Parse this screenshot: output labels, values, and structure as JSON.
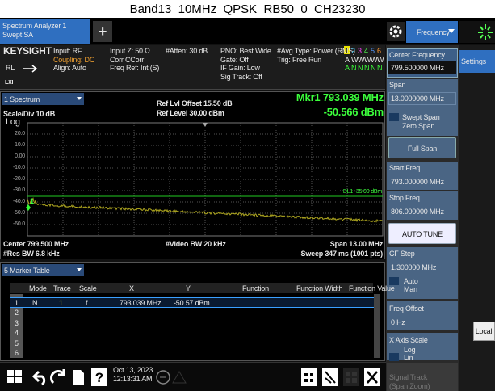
{
  "title": "Band13_10MHz_QPSK_RB50_0_CH23230",
  "tab_bar": {
    "instrument": "Spectrum Analyzer 1",
    "mode": "Swept SA",
    "add": "+",
    "menu": "Frequency"
  },
  "status": {
    "brand": "KEYSIGHT",
    "rl": "RL",
    "lxi": "LXI",
    "input": [
      "Input: RF",
      "Coupling: DC",
      "Align: Auto"
    ],
    "impedance": [
      "Input Z: 50 Ω",
      "Corr CCorr",
      "Freq Ref: Int (S)"
    ],
    "atten": "#Atten: 30 dB",
    "gate": [
      "PNO: Best Wide",
      "Gate: Off",
      "IF Gain: Low",
      "Sig Track: Off"
    ],
    "avg": [
      "#Avg Type: Power (RMS)",
      "Trig: Free Run"
    ],
    "trace_numbers": [
      "1",
      "2",
      "3",
      "4",
      "5",
      "6"
    ],
    "trace_types": [
      "A",
      "W",
      "W",
      "W",
      "W",
      "W"
    ],
    "trace_detectors": [
      "A",
      "N",
      "N",
      "N",
      "N",
      "N"
    ]
  },
  "spectrum": {
    "window": "1 Spectrum",
    "ref_offset": "Ref Lvl Offset 15.50 dB",
    "ref_level": "Ref Level 30.00 dBm",
    "marker_freq": "Mkr1  793.039 MHz",
    "marker_amp": "-50.566 dBm",
    "scale": "Scale/Div 10 dB",
    "log": "Log",
    "y_labels": [
      "20.0",
      "10.0",
      "0.00",
      "-10.0",
      "-20.0",
      "-30.0",
      "-40.0",
      "-50.0",
      "-60.0"
    ],
    "display_line": "DL1 -35.00 dBm",
    "marker_label": "1",
    "center": "Center 799.500 MHz",
    "vbw": "#Video BW 20 kHz",
    "span": "Span 13.00 MHz",
    "rbw": "#Res BW 6.8 kHz",
    "sweep": "Sweep 347 ms (1001 pts)"
  },
  "marker_table": {
    "window": "5 Marker Table",
    "headers": [
      "Mode",
      "Trace",
      "Scale",
      "X",
      "Y",
      "Function",
      "Function Width",
      "Function Value"
    ],
    "rows": [
      [
        "1",
        "N",
        "1",
        "f",
        "793.039 MHz",
        "-50.57 dBm"
      ],
      [
        "2"
      ],
      [
        "3"
      ],
      [
        "4"
      ],
      [
        "5"
      ],
      [
        "6"
      ]
    ]
  },
  "taskbar": {
    "date": "Oct 13, 2023",
    "time": "12:13:31 AM"
  },
  "panel": {
    "center_frequency": {
      "label": "Center Frequency",
      "value": "799.500000 MHz"
    },
    "span": {
      "label": "Span",
      "value": "13.0000000 MHz"
    },
    "span_mode": [
      "Swept Span",
      "Zero Span"
    ],
    "full_span": "Full Span",
    "start_freq": {
      "label": "Start Freq",
      "value": "793.000000 MHz"
    },
    "stop_freq": {
      "label": "Stop Freq",
      "value": "806.000000 MHz"
    },
    "auto_tune": "AUTO TUNE",
    "cf_step": {
      "label": "CF Step",
      "value": "1.300000 MHz",
      "options": [
        "Auto",
        "Man"
      ]
    },
    "freq_offset": {
      "label": "Freq Offset",
      "value": "0 Hz"
    },
    "x_axis_scale": {
      "label": "X Axis Scale",
      "options": [
        "Log",
        "Lin"
      ]
    },
    "signal_track": [
      "Signal Track",
      "(Span Zoom)"
    ]
  },
  "side": {
    "settings": "Settings",
    "local": "Local"
  }
}
